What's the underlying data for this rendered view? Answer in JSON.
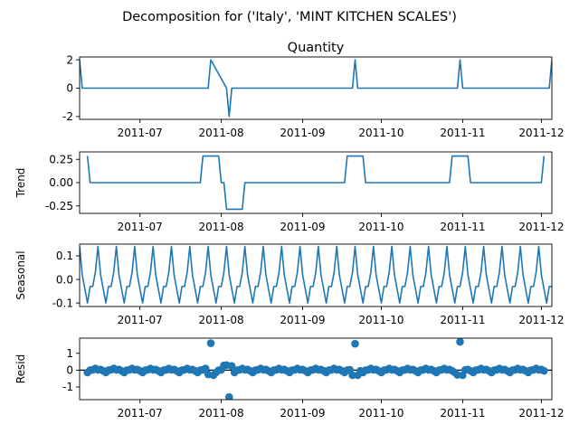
{
  "figure": {
    "suptitle": "Decomposition for ('Italy', 'MINT KITCHEN SCALES')"
  },
  "chart_data": [
    {
      "type": "line",
      "title": "Quantity",
      "ylabel": "",
      "xlabel": "",
      "x_range": [
        "2011-06-08",
        "2011-12-05"
      ],
      "ylim": [
        -2.2,
        2.2
      ],
      "yticks": [
        "2",
        "0",
        "-2"
      ],
      "ytick_values": [
        2,
        0,
        -2
      ],
      "xticks": [
        "2011-07",
        "2011-08",
        "2011-09",
        "2011-10",
        "2011-11",
        "2011-12"
      ],
      "xtick_dates": [
        "2011-07-01",
        "2011-08-01",
        "2011-09-01",
        "2011-10-01",
        "2011-11-01",
        "2011-12-01"
      ],
      "color": "#1f77b4",
      "series": [
        {
          "x": [
            "2011-06-08",
            "2011-06-09",
            "2011-07-27",
            "2011-07-28",
            "2011-08-03",
            "2011-08-04",
            "2011-08-05",
            "2011-09-20",
            "2011-09-21",
            "2011-09-22",
            "2011-10-30",
            "2011-10-31",
            "2011-11-01",
            "2011-12-04",
            "2011-12-05"
          ],
          "y": [
            2,
            0,
            0,
            2,
            0,
            -2,
            0,
            0,
            2,
            0,
            0,
            2,
            0,
            0,
            2
          ]
        }
      ]
    },
    {
      "type": "line",
      "title": "",
      "ylabel": "Trend",
      "xlabel": "",
      "x_range": [
        "2011-06-08",
        "2011-12-05"
      ],
      "ylim": [
        -0.33,
        0.33
      ],
      "yticks": [
        "0.25",
        "0.00",
        "-0.25"
      ],
      "ytick_values": [
        0.25,
        0,
        -0.25
      ],
      "xticks": [
        "2011-07",
        "2011-08",
        "2011-09",
        "2011-10",
        "2011-11",
        "2011-12"
      ],
      "xtick_dates": [
        "2011-07-01",
        "2011-08-01",
        "2011-09-01",
        "2011-10-01",
        "2011-11-01",
        "2011-12-01"
      ],
      "color": "#1f77b4",
      "series": [
        {
          "x": [
            "2011-06-11",
            "2011-06-12",
            "2011-07-24",
            "2011-07-25",
            "2011-07-31",
            "2011-08-01",
            "2011-08-02",
            "2011-08-03",
            "2011-08-09",
            "2011-08-10",
            "2011-09-17",
            "2011-09-18",
            "2011-09-24",
            "2011-09-25",
            "2011-10-27",
            "2011-10-28",
            "2011-11-03",
            "2011-11-04",
            "2011-12-01",
            "2011-12-02"
          ],
          "y": [
            0.286,
            0,
            0,
            0.286,
            0.286,
            0,
            0,
            -0.286,
            -0.286,
            0,
            0,
            0.286,
            0.286,
            0,
            0,
            0.286,
            0.286,
            0,
            0,
            0.286
          ]
        }
      ]
    },
    {
      "type": "line",
      "title": "",
      "ylabel": "Seasonal",
      "xlabel": "",
      "x_range": [
        "2011-06-08",
        "2011-12-05"
      ],
      "ylim": [
        -0.115,
        0.15
      ],
      "yticks": [
        "0.1",
        "0.0",
        "-0.1"
      ],
      "ytick_values": [
        0.1,
        0,
        -0.1
      ],
      "xticks": [
        "2011-07",
        "2011-08",
        "2011-09",
        "2011-10",
        "2011-11",
        "2011-12"
      ],
      "xtick_dates": [
        "2011-07-01",
        "2011-08-01",
        "2011-09-01",
        "2011-10-01",
        "2011-11-01",
        "2011-12-01"
      ],
      "color": "#1f77b4",
      "start": "2011-06-08",
      "period_pattern": [
        0.14,
        0.02,
        -0.04,
        -0.1,
        -0.03,
        -0.03,
        0.03
      ],
      "points": 181
    },
    {
      "type": "scatter",
      "title": "",
      "ylabel": "Resid",
      "xlabel": "",
      "x_range": [
        "2011-06-08",
        "2011-12-05"
      ],
      "ylim": [
        -1.75,
        1.9
      ],
      "yticks": [
        "1",
        "0",
        "-1"
      ],
      "ytick_values": [
        1,
        0,
        -1
      ],
      "xticks": [
        "2011-07",
        "2011-08",
        "2011-09",
        "2011-10",
        "2011-11",
        "2011-12"
      ],
      "xtick_dates": [
        "2011-07-01",
        "2011-08-01",
        "2011-09-01",
        "2011-10-01",
        "2011-11-01",
        "2011-12-01"
      ],
      "color": "#1f77b4",
      "baseline": 0,
      "start": "2011-06-11",
      "end": "2011-12-02",
      "base_pattern": [
        -0.14,
        0.0,
        0.02,
        0.1,
        0.02,
        0.04,
        -0.04
      ],
      "outliers": [
        {
          "x": "2011-07-28",
          "y": 1.6
        },
        {
          "x": "2011-08-04",
          "y": -1.6
        },
        {
          "x": "2011-09-21",
          "y": 1.57
        },
        {
          "x": "2011-10-31",
          "y": 1.68
        },
        {
          "x": "2011-07-27",
          "y": -0.25
        },
        {
          "x": "2011-07-29",
          "y": -0.3
        },
        {
          "x": "2011-08-02",
          "y": 0.28
        },
        {
          "x": "2011-08-03",
          "y": 0.3
        },
        {
          "x": "2011-08-05",
          "y": 0.25
        },
        {
          "x": "2011-09-20",
          "y": -0.3
        },
        {
          "x": "2011-09-22",
          "y": -0.3
        },
        {
          "x": "2011-10-30",
          "y": -0.28
        },
        {
          "x": "2011-11-01",
          "y": -0.3
        }
      ]
    }
  ]
}
